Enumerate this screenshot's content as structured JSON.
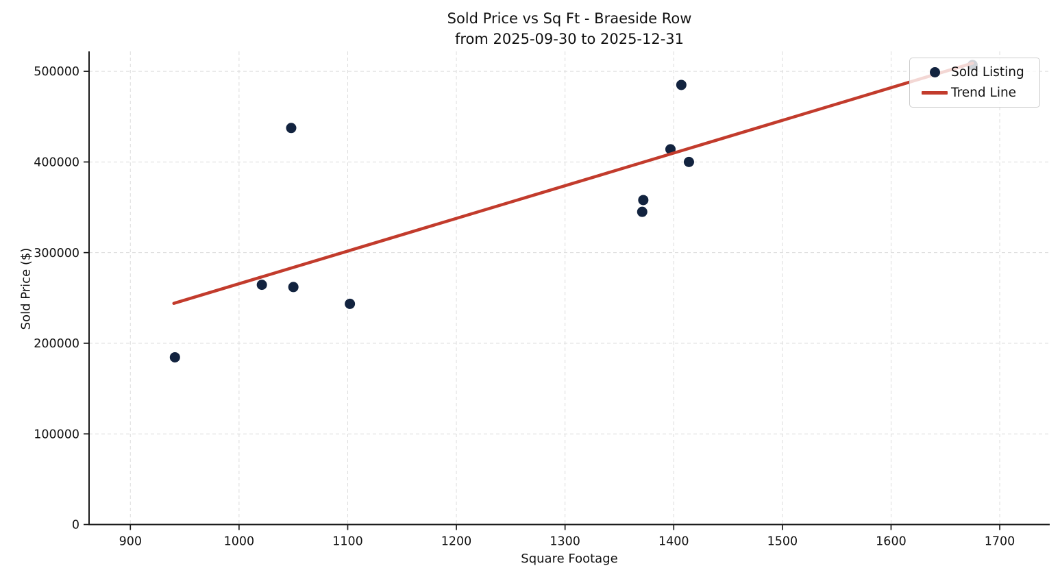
{
  "page": {
    "title_line1": "Sold Price vs Sq Ft - Braeside Row",
    "title_line2": "from 2025-09-30 to 2025-12-31"
  },
  "chart_data": {
    "type": "scatter",
    "title": "Sold Price vs Sq Ft - Braeside Row\nfrom 2025-09-30 to 2025-12-31",
    "xlabel": "Square Footage",
    "ylabel": "Sold Price ($)",
    "xlim": [
      862,
      1746
    ],
    "ylim": [
      0,
      522000
    ],
    "x_ticks": [
      900,
      1000,
      1100,
      1200,
      1300,
      1400,
      1500,
      1600,
      1700
    ],
    "y_ticks": [
      0,
      100000,
      200000,
      300000,
      400000,
      500000
    ],
    "grid": true,
    "grid_color": "#dcdcdc",
    "legend_position": "upper right",
    "series": [
      {
        "name": "Sold Listing",
        "type": "scatter",
        "color": "#12233f",
        "marker_radius": 7.5,
        "x": [
          941,
          1021,
          1048,
          1050,
          1102,
          1371,
          1372,
          1397,
          1407,
          1414,
          1675
        ],
        "y": [
          184500,
          264500,
          437500,
          262000,
          243500,
          345000,
          358000,
          414000,
          485000,
          400000,
          507000
        ]
      },
      {
        "name": "Trend Line",
        "type": "line",
        "color": "#c23b2c",
        "line_width": 4.5,
        "x": [
          940,
          1675
        ],
        "y": [
          244000,
          509000
        ]
      }
    ]
  },
  "legend": {
    "items": [
      {
        "label": "Sold Listing",
        "marker": "dot",
        "color": "#12233f"
      },
      {
        "label": "Trend Line",
        "marker": "line",
        "color": "#c23b2c"
      }
    ]
  }
}
